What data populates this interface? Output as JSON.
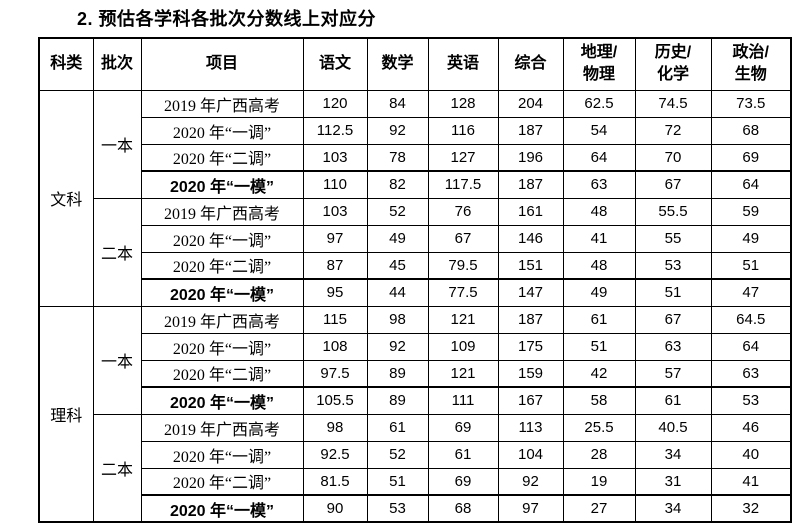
{
  "title": "2. 预估各学科各批次分数线上对应分",
  "table": {
    "headers": [
      "科类",
      "批次",
      "项目",
      "语文",
      "数学",
      "英语",
      "综合",
      "地理/\n物理",
      "历史/\n化学",
      "政治/\n生物"
    ],
    "groups": [
      {
        "category": "文科",
        "batches": [
          {
            "batch": "一本",
            "rows": [
              {
                "item": "2019 年广西高考",
                "bold": false,
                "values": [
                  "120",
                  "84",
                  "128",
                  "204",
                  "62.5",
                  "74.5",
                  "73.5"
                ]
              },
              {
                "item": "2020 年“一调”",
                "bold": false,
                "values": [
                  "112.5",
                  "92",
                  "116",
                  "187",
                  "54",
                  "72",
                  "68"
                ]
              },
              {
                "item": "2020 年“二调”",
                "bold": false,
                "values": [
                  "103",
                  "78",
                  "127",
                  "196",
                  "64",
                  "70",
                  "69"
                ]
              },
              {
                "item": "2020 年“一模”",
                "bold": true,
                "values": [
                  "110",
                  "82",
                  "117.5",
                  "187",
                  "63",
                  "67",
                  "64"
                ]
              }
            ]
          },
          {
            "batch": "二本",
            "rows": [
              {
                "item": "2019 年广西高考",
                "bold": false,
                "values": [
                  "103",
                  "52",
                  "76",
                  "161",
                  "48",
                  "55.5",
                  "59"
                ]
              },
              {
                "item": "2020 年“一调”",
                "bold": false,
                "values": [
                  "97",
                  "49",
                  "67",
                  "146",
                  "41",
                  "55",
                  "49"
                ]
              },
              {
                "item": "2020 年“二调”",
                "bold": false,
                "values": [
                  "87",
                  "45",
                  "79.5",
                  "151",
                  "48",
                  "53",
                  "51"
                ]
              },
              {
                "item": "2020 年“一模”",
                "bold": true,
                "values": [
                  "95",
                  "44",
                  "77.5",
                  "147",
                  "49",
                  "51",
                  "47"
                ]
              }
            ]
          }
        ]
      },
      {
        "category": "理科",
        "batches": [
          {
            "batch": "一本",
            "rows": [
              {
                "item": "2019 年广西高考",
                "bold": false,
                "values": [
                  "115",
                  "98",
                  "121",
                  "187",
                  "61",
                  "67",
                  "64.5"
                ]
              },
              {
                "item": "2020 年“一调”",
                "bold": false,
                "values": [
                  "108",
                  "92",
                  "109",
                  "175",
                  "51",
                  "63",
                  "64"
                ]
              },
              {
                "item": "2020 年“二调”",
                "bold": false,
                "values": [
                  "97.5",
                  "89",
                  "121",
                  "159",
                  "42",
                  "57",
                  "63"
                ]
              },
              {
                "item": "2020 年“一模”",
                "bold": true,
                "values": [
                  "105.5",
                  "89",
                  "111",
                  "167",
                  "58",
                  "61",
                  "53"
                ]
              }
            ]
          },
          {
            "batch": "二本",
            "rows": [
              {
                "item": "2019 年广西高考",
                "bold": false,
                "values": [
                  "98",
                  "61",
                  "69",
                  "113",
                  "25.5",
                  "40.5",
                  "46"
                ]
              },
              {
                "item": "2020 年“一调”",
                "bold": false,
                "values": [
                  "92.5",
                  "52",
                  "61",
                  "104",
                  "28",
                  "34",
                  "40"
                ]
              },
              {
                "item": "2020 年“二调”",
                "bold": false,
                "values": [
                  "81.5",
                  "51",
                  "69",
                  "92",
                  "19",
                  "31",
                  "41"
                ]
              },
              {
                "item": "2020 年“一模”",
                "bold": true,
                "values": [
                  "90",
                  "53",
                  "68",
                  "97",
                  "27",
                  "34",
                  "32"
                ]
              }
            ]
          }
        ]
      }
    ]
  }
}
